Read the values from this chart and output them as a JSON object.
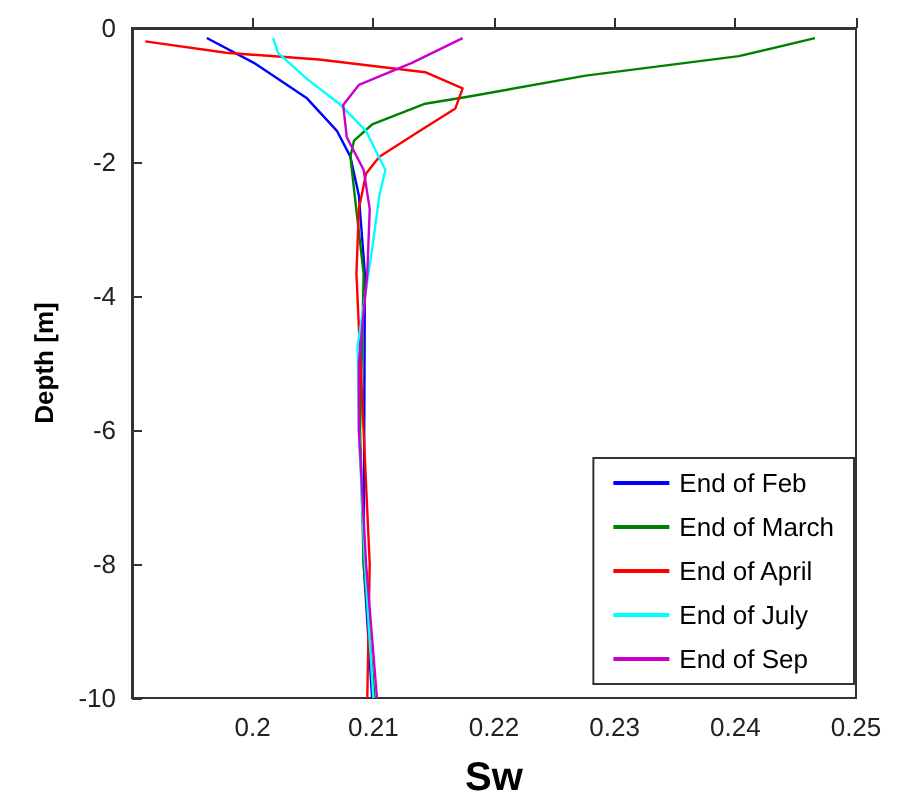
{
  "chart_data": {
    "type": "line",
    "xlabel": "Sw",
    "ylabel": "Depth [m]",
    "xlim": [
      0.19,
      0.25
    ],
    "xticks": [
      0.2,
      0.21,
      0.22,
      0.23,
      0.24,
      0.25
    ],
    "ylim": [
      -10,
      0
    ],
    "yticks": [
      -10,
      -8,
      -6,
      -4,
      -2,
      0
    ],
    "grid": false,
    "legend": "bottom right",
    "marker": "none",
    "line_style": "solid",
    "series": [
      {
        "name": "End of Feb",
        "color": "#0000ff",
        "x": [
          0.1962,
          0.2001,
          0.2045,
          0.207,
          0.2081,
          0.2088,
          0.2093,
          0.2092,
          0.2099
        ],
        "values": [
          -0.15,
          -0.52,
          -1.05,
          -1.54,
          -1.92,
          -2.5,
          -3.67,
          -8,
          -10
        ]
      },
      {
        "name": "End of March",
        "color": "#008000",
        "x": [
          0.2466,
          0.2403,
          0.2276,
          0.2177,
          0.2143,
          0.2099,
          0.2084,
          0.2081,
          0.2084,
          0.2092,
          0.2089,
          0.2092,
          0.2101
        ],
        "values": [
          -0.15,
          -0.42,
          -0.71,
          -1.03,
          -1.13,
          -1.44,
          -1.68,
          -1.92,
          -2.41,
          -3.67,
          -6,
          -8,
          -10
        ]
      },
      {
        "name": "End of April",
        "color": "#ff0000",
        "x": [
          0.1911,
          0.1978,
          0.2055,
          0.2143,
          0.2174,
          0.2168,
          0.2138,
          0.2105,
          0.2094,
          0.2088,
          0.2086,
          0.2097,
          0.2095
        ],
        "values": [
          -0.2,
          -0.37,
          -0.47,
          -0.66,
          -0.9,
          -1.2,
          -1.54,
          -1.92,
          -2.17,
          -2.7,
          -3.67,
          -8,
          -10
        ]
      },
      {
        "name": "End of July",
        "color": "#00ffff",
        "x": [
          0.2017,
          0.2021,
          0.2045,
          0.2073,
          0.2094,
          0.211,
          0.2105,
          0.2099,
          0.2087,
          0.2088,
          0.2093,
          0.21
        ],
        "values": [
          -0.15,
          -0.37,
          -0.76,
          -1.15,
          -1.54,
          -2.12,
          -2.5,
          -3.3,
          -4.74,
          -6,
          -8,
          -10
        ]
      },
      {
        "name": "End of Sep",
        "color": "#cc00cc",
        "x": [
          0.2174,
          0.2132,
          0.2088,
          0.2075,
          0.2078,
          0.2092,
          0.2097,
          0.2095,
          0.2088,
          0.2088,
          0.2094,
          0.2103
        ],
        "values": [
          -0.15,
          -0.52,
          -0.85,
          -1.15,
          -1.63,
          -2.12,
          -2.7,
          -3.67,
          -5,
          -6,
          -8,
          -10
        ]
      }
    ]
  }
}
